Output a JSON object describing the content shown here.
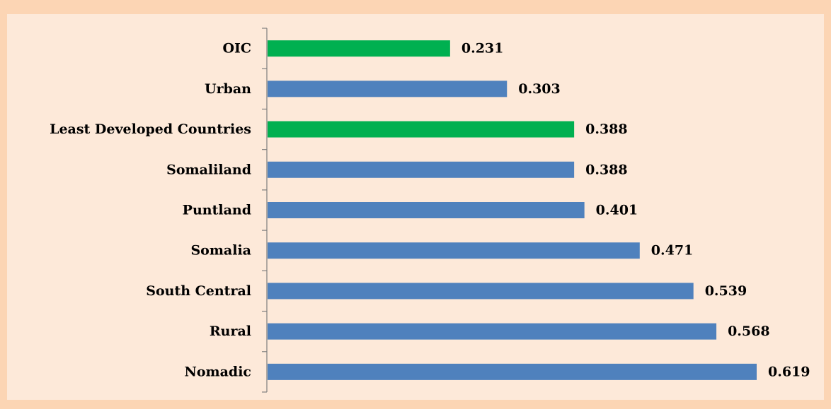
{
  "chart_data": {
    "type": "bar",
    "orientation": "horizontal",
    "categories": [
      "OIC",
      "Urban",
      "Least Developed Countries",
      "Somaliland",
      "Puntland",
      "Somalia",
      "South Central",
      "Rural",
      "Nomadic"
    ],
    "values": [
      0.231,
      0.303,
      0.388,
      0.388,
      0.401,
      0.471,
      0.539,
      0.568,
      0.619
    ],
    "colors": [
      "#00b050",
      "#4f81bd",
      "#00b050",
      "#4f81bd",
      "#4f81bd",
      "#4f81bd",
      "#4f81bd",
      "#4f81bd",
      "#4f81bd"
    ]
  }
}
